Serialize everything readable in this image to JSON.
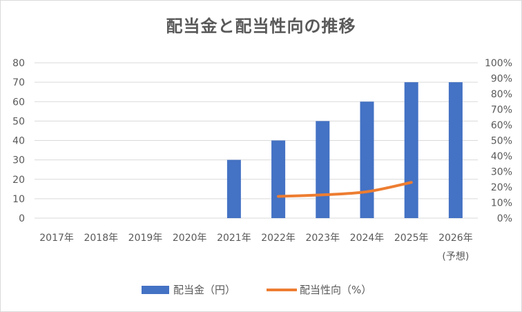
{
  "chart_data": {
    "type": "bar",
    "title": "配当金と配当性向の推移",
    "categories": [
      "2017年",
      "2018年",
      "2019年",
      "2020年",
      "2021年",
      "2022年",
      "2023年",
      "2024年",
      "2025年",
      "2026年\n(予想)"
    ],
    "series": [
      {
        "name": "配当金（円）",
        "type": "bar",
        "axis": "left",
        "color": "#4472c4",
        "values": [
          null,
          null,
          null,
          null,
          30,
          40,
          50,
          60,
          70,
          70
        ]
      },
      {
        "name": "配当性向（%）",
        "type": "line",
        "axis": "right",
        "color": "#ed7d31",
        "values": [
          null,
          null,
          null,
          null,
          null,
          14,
          15,
          17,
          23,
          null
        ]
      }
    ],
    "y_left": {
      "min": 0,
      "max": 80,
      "step": 10,
      "ticks": [
        "0",
        "10",
        "20",
        "30",
        "40",
        "50",
        "60",
        "70",
        "80"
      ]
    },
    "y_right": {
      "min": 0,
      "max": 100,
      "step": 10,
      "ticks": [
        "0%",
        "10%",
        "20%",
        "30%",
        "40%",
        "50%",
        "60%",
        "70%",
        "80%",
        "90%",
        "100%"
      ]
    },
    "grid": true,
    "legend_position": "bottom"
  }
}
